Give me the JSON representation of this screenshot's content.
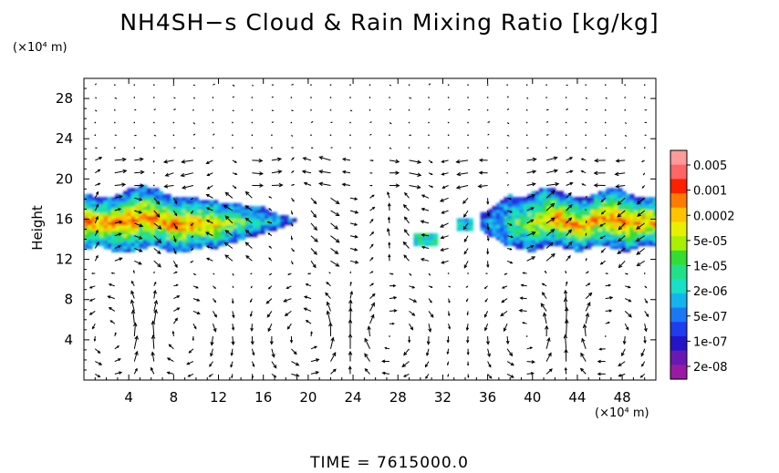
{
  "title": "NH4SH−s Cloud & Rain Mixing Ratio [kg/kg]",
  "time_label": "TIME = 7615000.0",
  "y_unit": "(×10⁴ m)",
  "x_unit": "(×10⁴ m)",
  "chart_data": {
    "type": "heatmap",
    "title": "NH4SH−s Cloud & Rain Mixing Ratio [kg/kg]",
    "xlabel": "",
    "ylabel": "Height",
    "x_unit": "(×10⁴ m)",
    "y_unit": "(×10⁴ m)",
    "xlim": [
      0,
      51
    ],
    "ylim": [
      0,
      30
    ],
    "x_ticks": [
      4,
      8,
      12,
      16,
      20,
      24,
      28,
      32,
      36,
      40,
      44,
      48
    ],
    "y_ticks": [
      4,
      8,
      12,
      16,
      20,
      24,
      28
    ],
    "colorbar": {
      "labels": [
        "0.005",
        "0.001",
        "0.0002",
        "5e-05",
        "1e-05",
        "2e-06",
        "5e-07",
        "1e-07",
        "2e-08"
      ],
      "colors": [
        "#ff9a9a",
        "#ff6565",
        "#ff2000",
        "#ff7a00",
        "#ffc300",
        "#e8f000",
        "#a8f000",
        "#33dd33",
        "#22e08a",
        "#18e0c8",
        "#15b4ee",
        "#1a78f5",
        "#1f3cee",
        "#2414c8",
        "#6a18b4",
        "#9a1aa6"
      ]
    },
    "overlay": "wind vectors",
    "regions": [
      {
        "x": [
          0,
          19
        ],
        "y": [
          12.8,
          19
        ],
        "max": "0.001"
      },
      {
        "x": [
          29.5,
          31
        ],
        "y": [
          13.5,
          14.5
        ],
        "max": "5e-05"
      },
      {
        "x": [
          33.5,
          34.5
        ],
        "y": [
          15,
          16
        ],
        "max": "1e-05"
      },
      {
        "x": [
          35.5,
          51
        ],
        "y": [
          13,
          19.3
        ],
        "max": "0.001"
      }
    ]
  }
}
